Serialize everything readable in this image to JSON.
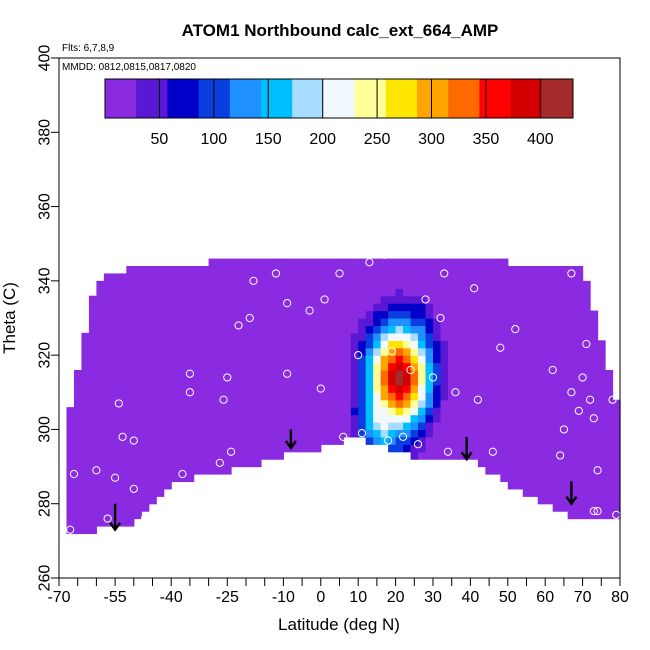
{
  "title": "ATOM1 Northbound calc_ext_664_AMP",
  "flights_note": "Flts: 6,7,8,9",
  "dates_note": "MMDD: 0812,0815,0817,0820",
  "chart_data": {
    "type": "heatmap",
    "xlabel": "Latitude (deg N)",
    "ylabel": "Theta (C)",
    "xlim": [
      -70,
      80
    ],
    "ylim": [
      260,
      400
    ],
    "x_tick_labels": [
      "-70",
      "-55",
      "-40",
      "-25",
      "-10",
      "0",
      "10",
      "20",
      "30",
      "40",
      "50",
      "60",
      "70",
      "80"
    ],
    "x_ticks_minor": [
      -65,
      -60,
      -50,
      -45,
      -35,
      -30,
      -20,
      -15,
      -5,
      5,
      15,
      25,
      35,
      45,
      55,
      65,
      75
    ],
    "y_tick_labels": [
      "260",
      "280",
      "300",
      "320",
      "340",
      "360",
      "380",
      "400"
    ],
    "colorbar": {
      "range": [
        0,
        430
      ],
      "tick_labels": [
        "50",
        "100",
        "150",
        "200",
        "250",
        "300",
        "350",
        "400"
      ],
      "colors": [
        "#8a2be2",
        "#5a17d4",
        "#0000c8",
        "#0a3ee0",
        "#1e90ff",
        "#00bfff",
        "#a8dcff",
        "#f2f8ff",
        "#ffff99",
        "#ffe600",
        "#ffa500",
        "#ff6a00",
        "#ff0000",
        "#d20000",
        "#a52a2a"
      ]
    },
    "field_domain": {
      "top": [
        [
          -60,
          340
        ],
        [
          -55,
          342
        ],
        [
          -50,
          344
        ],
        [
          -40,
          344
        ],
        [
          -30,
          345
        ],
        [
          -20,
          345
        ],
        [
          -10,
          345
        ],
        [
          0,
          345
        ],
        [
          10,
          345
        ],
        [
          20,
          345
        ],
        [
          30,
          345
        ],
        [
          40,
          345
        ],
        [
          50,
          345
        ],
        [
          60,
          344
        ],
        [
          70,
          343
        ]
      ],
      "bottom": [
        [
          -68,
          272
        ],
        [
          -60,
          273
        ],
        [
          -50,
          274
        ],
        [
          -40,
          285
        ],
        [
          -30,
          288
        ],
        [
          -20,
          290
        ],
        [
          -10,
          293
        ],
        [
          0,
          295
        ],
        [
          10,
          298
        ],
        [
          20,
          294
        ],
        [
          30,
          292
        ],
        [
          40,
          292
        ],
        [
          50,
          285
        ],
        [
          60,
          280
        ],
        [
          70,
          275
        ],
        [
          80,
          276
        ]
      ],
      "right_edge": [
        [
          70,
          343
        ],
        [
          72,
          335
        ],
        [
          75,
          320
        ],
        [
          78,
          310
        ],
        [
          80,
          300
        ],
        [
          80,
          276
        ]
      ],
      "left_edge": [
        [
          -60,
          340
        ],
        [
          -64,
          325
        ],
        [
          -66,
          310
        ],
        [
          -68,
          295
        ],
        [
          -70,
          285
        ],
        [
          -68,
          272
        ]
      ],
      "background_value": 20
    },
    "features": [
      {
        "lat": 21,
        "theta": 314,
        "value": 410,
        "sx": 6,
        "sy": 10
      },
      {
        "lat": 17,
        "theta": 305,
        "value": 230,
        "sx": 5,
        "sy": 9
      },
      {
        "lat": 26,
        "theta": 322,
        "value": 160,
        "sx": 3,
        "sy": 8
      }
    ],
    "low_regions": [
      {
        "lat": -5,
        "theta": 305,
        "value": -25,
        "sx": 8,
        "sy": 10
      },
      {
        "lat": 33,
        "theta": 306,
        "value": -20,
        "sx": 6,
        "sy": 10
      },
      {
        "lat": 40,
        "theta": 296,
        "value": -12,
        "sx": 6,
        "sy": 5
      }
    ],
    "sample_points": [
      [
        -67,
        273
      ],
      [
        -66,
        288
      ],
      [
        -60,
        289
      ],
      [
        -57,
        276
      ],
      [
        -55,
        287
      ],
      [
        -54,
        307
      ],
      [
        -53,
        298
      ],
      [
        -50,
        297
      ],
      [
        -50,
        284
      ],
      [
        -47,
        276
      ],
      [
        -37,
        288
      ],
      [
        -35,
        310
      ],
      [
        -35,
        315
      ],
      [
        -27,
        291
      ],
      [
        -26,
        308
      ],
      [
        -25,
        314
      ],
      [
        -24,
        294
      ],
      [
        -22,
        328
      ],
      [
        -19,
        330
      ],
      [
        -18,
        340
      ],
      [
        -12,
        342
      ],
      [
        -9,
        315
      ],
      [
        -9,
        334
      ],
      [
        -3,
        332
      ],
      [
        0,
        311
      ],
      [
        1,
        335
      ],
      [
        5,
        342
      ],
      [
        6,
        298
      ],
      [
        10,
        320
      ],
      [
        11,
        299
      ],
      [
        13,
        345
      ],
      [
        17,
        347
      ],
      [
        18,
        297
      ],
      [
        19,
        321
      ],
      [
        22,
        298
      ],
      [
        24,
        316
      ],
      [
        26,
        296
      ],
      [
        28,
        335
      ],
      [
        30,
        314
      ],
      [
        32,
        330
      ],
      [
        33,
        342
      ],
      [
        34,
        294
      ],
      [
        36,
        310
      ],
      [
        41,
        338
      ],
      [
        42,
        308
      ],
      [
        46,
        294
      ],
      [
        48,
        322
      ],
      [
        52,
        327
      ],
      [
        62,
        316
      ],
      [
        64,
        293
      ],
      [
        65,
        300
      ],
      [
        67,
        342
      ],
      [
        67,
        310
      ],
      [
        69,
        305
      ],
      [
        70,
        314
      ],
      [
        71,
        323
      ],
      [
        72,
        308
      ],
      [
        73,
        303
      ],
      [
        73,
        278
      ],
      [
        74,
        289
      ],
      [
        74,
        278
      ],
      [
        78,
        308
      ],
      [
        79,
        277
      ]
    ],
    "arrows": [
      {
        "lat": -55,
        "theta_top": 280,
        "theta_bottom": 273
      },
      {
        "lat": -8,
        "theta_top": 300,
        "theta_bottom": 295
      },
      {
        "lat": 39,
        "theta_top": 298,
        "theta_bottom": 292
      },
      {
        "lat": 67,
        "theta_top": 286,
        "theta_bottom": 280
      }
    ]
  }
}
